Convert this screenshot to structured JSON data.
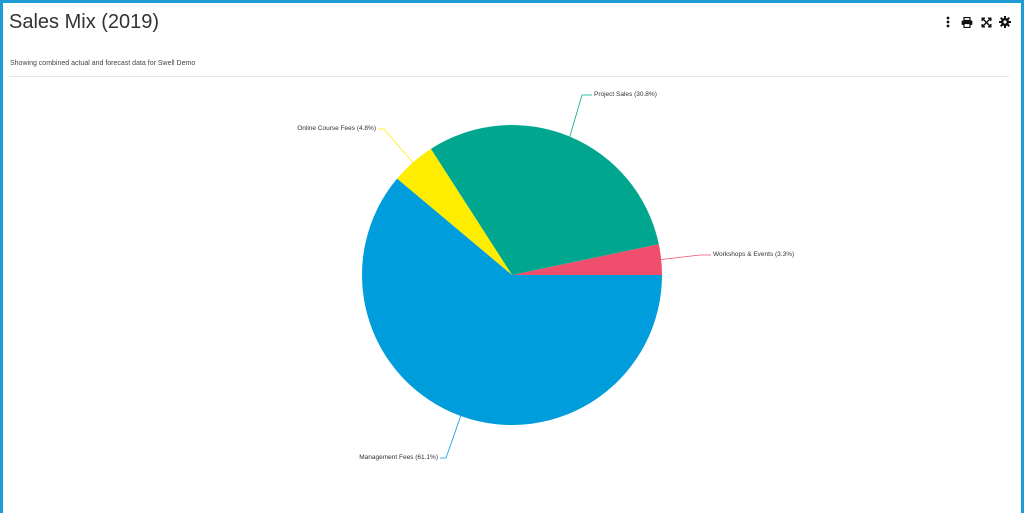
{
  "header": {
    "title": "Sales Mix (2019)",
    "subtitle": "Showing combined actual and forecast data for Swell Demo",
    "tools": [
      {
        "name": "more-icon"
      },
      {
        "name": "print-icon"
      },
      {
        "name": "expand-icon"
      },
      {
        "name": "gear-icon"
      }
    ]
  },
  "colors": {
    "border": "#1e9ad6",
    "text": "#333333"
  },
  "chart_data": {
    "type": "pie",
    "start_angle_deg": 0,
    "direction": "counterclockwise",
    "slices": [
      {
        "label": "Workshops & Events (3.3%)",
        "value": 3.3,
        "color": "#ef4f6c"
      },
      {
        "label": "Project Sales (30.8%)",
        "value": 30.8,
        "color": "#00a78e"
      },
      {
        "label": "Online Course Fees (4.8%)",
        "value": 4.8,
        "color": "#ffed00"
      },
      {
        "label": "Management Fees (61.1%)",
        "value": 61.1,
        "color": "#009ddc"
      }
    ]
  }
}
